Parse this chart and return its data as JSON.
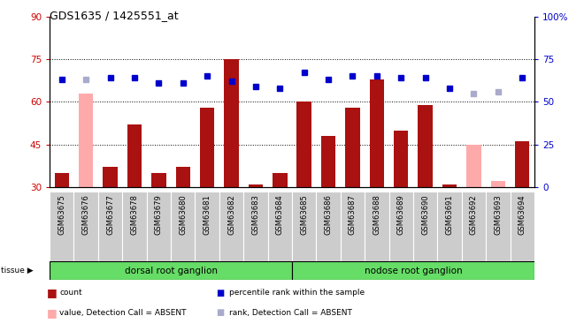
{
  "title": "GDS1635 / 1425551_at",
  "samples": [
    "GSM63675",
    "GSM63676",
    "GSM63677",
    "GSM63678",
    "GSM63679",
    "GSM63680",
    "GSM63681",
    "GSM63682",
    "GSM63683",
    "GSM63684",
    "GSM63685",
    "GSM63686",
    "GSM63687",
    "GSM63688",
    "GSM63689",
    "GSM63690",
    "GSM63691",
    "GSM63692",
    "GSM63693",
    "GSM63694"
  ],
  "bar_values": [
    35,
    63,
    37,
    52,
    35,
    37,
    58,
    75,
    31,
    35,
    60,
    48,
    58,
    68,
    50,
    59,
    31,
    45,
    32,
    46
  ],
  "bar_absent": [
    false,
    true,
    false,
    false,
    false,
    false,
    false,
    false,
    false,
    false,
    false,
    false,
    false,
    false,
    false,
    false,
    false,
    true,
    true,
    false
  ],
  "rank_values": [
    63,
    63,
    64,
    64,
    61,
    61,
    65,
    62,
    59,
    58,
    67,
    63,
    65,
    65,
    64,
    64,
    58,
    55,
    56,
    64
  ],
  "rank_absent": [
    false,
    true,
    false,
    false,
    false,
    false,
    false,
    false,
    false,
    false,
    false,
    false,
    false,
    false,
    false,
    false,
    false,
    true,
    true,
    false
  ],
  "dorsal_count": 10,
  "nodose_count": 10,
  "ylim_left": [
    30,
    90
  ],
  "ylim_right": [
    0,
    100
  ],
  "yticks_left": [
    30,
    45,
    60,
    75,
    90
  ],
  "yticks_right": [
    0,
    25,
    50,
    75,
    100
  ],
  "ytick_labels_right": [
    "0",
    "25",
    "50",
    "75",
    "100%"
  ],
  "bar_color_present": "#aa1111",
  "bar_color_absent": "#ffaaaa",
  "rank_color_present": "#0000cc",
  "rank_color_absent": "#aaaacc",
  "bg_plot": "#ffffff",
  "bg_xticklabel": "#cccccc",
  "tissue_bg": "#66dd66",
  "group1_label": "dorsal root ganglion",
  "group2_label": "nodose root ganglion",
  "tissue_label": "tissue",
  "legend_items": [
    "count",
    "percentile rank within the sample",
    "value, Detection Call = ABSENT",
    "rank, Detection Call = ABSENT"
  ]
}
